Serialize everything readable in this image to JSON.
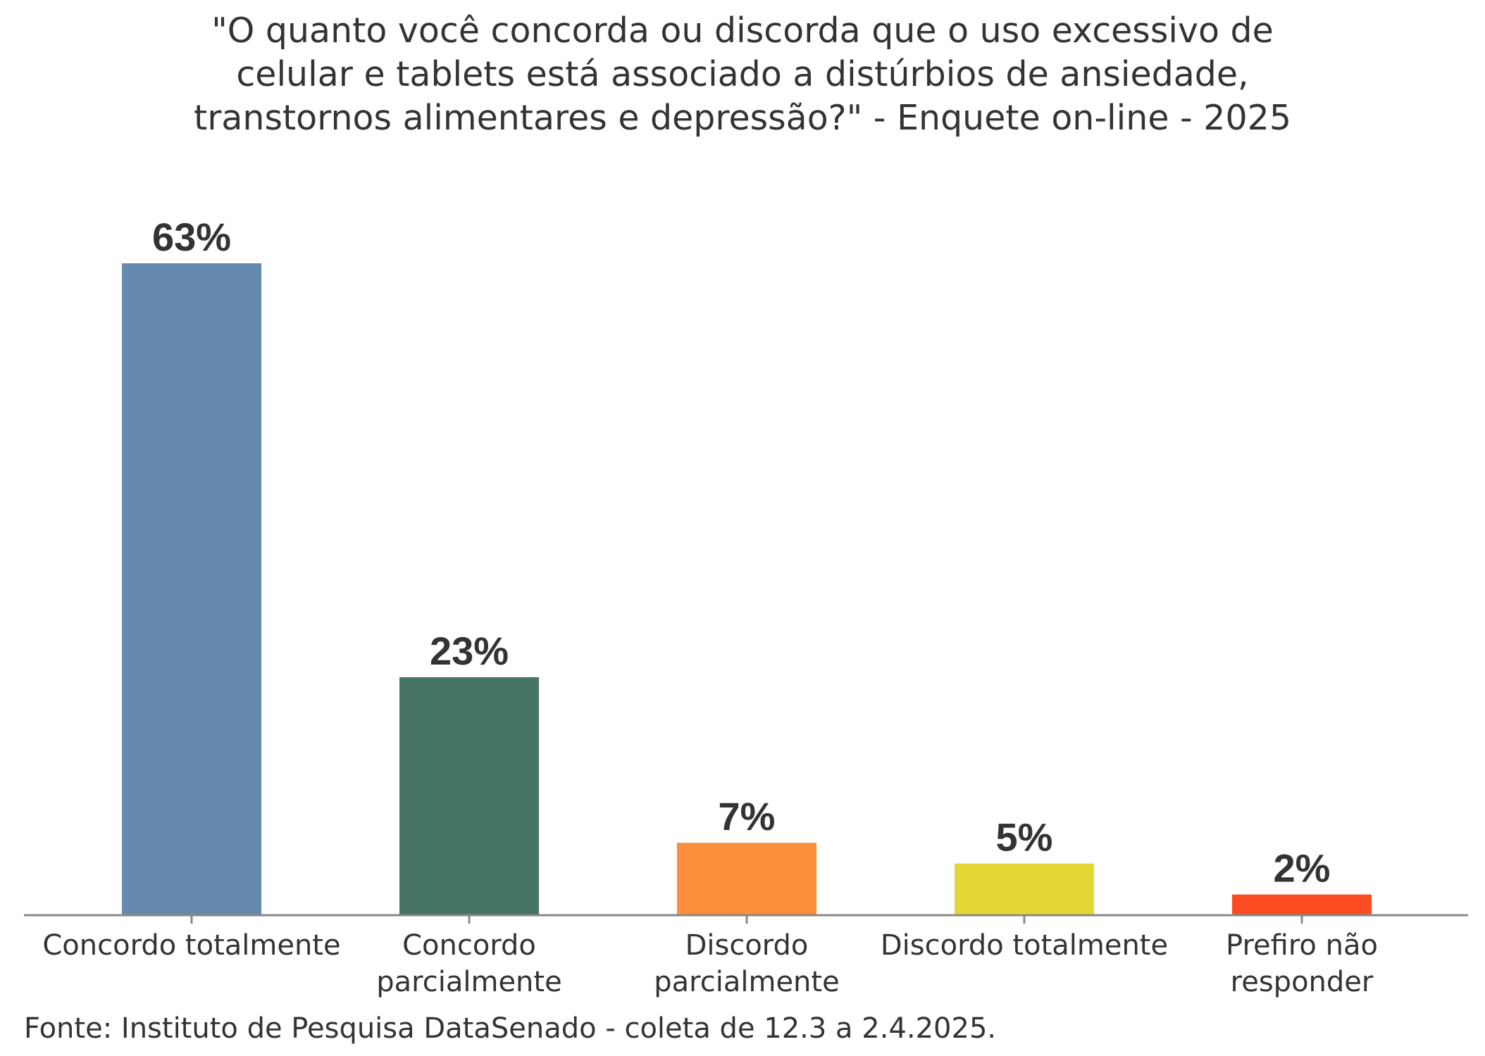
{
  "chart_data": {
    "type": "bar",
    "title_lines": [
      "\"O quanto você concorda ou discorda que o uso excessivo de",
      "celular e tablets está associado a distúrbios de ansiedade,",
      "transtornos alimentares e depressão?\" - Enquete on-line - 2025"
    ],
    "categories": [
      [
        "Concordo totalmente"
      ],
      [
        "Concordo",
        "parcialmente"
      ],
      [
        "Discordo",
        "parcialmente"
      ],
      [
        "Discordo totalmente"
      ],
      [
        "Prefiro não",
        "responder"
      ]
    ],
    "values": [
      63,
      23,
      7,
      5,
      2
    ],
    "value_labels": [
      "63%",
      "23%",
      "7%",
      "5%",
      "2%"
    ],
    "colors": [
      "#6689b0",
      "#467563",
      "#fb8f3b",
      "#e5d836",
      "#fb4b20"
    ],
    "ylim": [
      0,
      63
    ],
    "grid": false,
    "source": "Fonte: Instituto de Pesquisa DataSenado - coleta de 12.3 a 2.4.2025.",
    "axis_color": "#888888"
  }
}
